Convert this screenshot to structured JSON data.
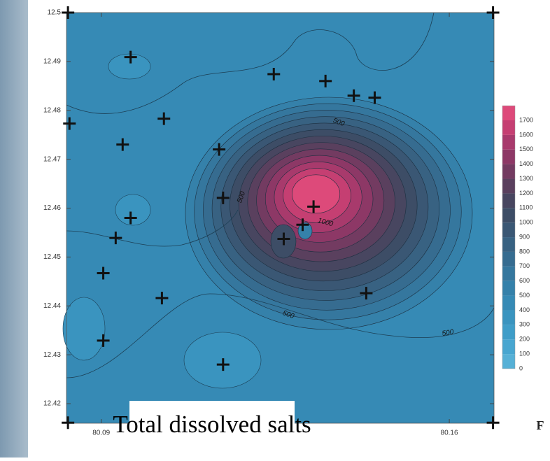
{
  "chart_data": {
    "type": "contour",
    "title": "Total dissolved salts",
    "caption_fragment": "F",
    "xlim": [
      80.083,
      80.169
    ],
    "ylim": [
      12.416,
      12.5
    ],
    "xticks": [
      80.09,
      80.16
    ],
    "yticks": [
      12.42,
      12.43,
      12.44,
      12.45,
      12.46,
      12.47,
      12.48,
      12.49,
      12.5
    ],
    "points": {
      "x": [
        80.0833,
        80.1688,
        80.0959,
        80.1247,
        80.1351,
        80.1408,
        80.145,
        80.0836,
        80.1026,
        80.0943,
        80.1137,
        80.1145,
        80.0959,
        80.1327,
        80.1305,
        80.1267,
        80.0929,
        80.0904,
        80.1022,
        80.1433,
        80.0904,
        80.1145,
        80.0833,
        80.1688
      ],
      "y": [
        12.5,
        12.5,
        12.4909,
        12.4874,
        12.486,
        12.483,
        12.4826,
        12.4773,
        12.4783,
        12.473,
        12.472,
        12.4621,
        12.458,
        12.4603,
        12.4566,
        12.4537,
        12.4539,
        12.4467,
        12.4416,
        12.4426,
        12.4329,
        12.428,
        12.4161,
        12.4161
      ],
      "color": "#111111"
    },
    "colorbar": {
      "ticks": [
        0,
        100,
        200,
        300,
        400,
        500,
        600,
        700,
        800,
        900,
        1000,
        1100,
        1200,
        1300,
        1400,
        1500,
        1600,
        1700
      ],
      "colors": [
        "#56b0d6",
        "#48a6d0",
        "#3f9dc8",
        "#3a94bf",
        "#368ab5",
        "#3581aa",
        "#35779e",
        "#366c90",
        "#386282",
        "#3a5774",
        "#3d4d66",
        "#484660",
        "#5a405e",
        "#733b61",
        "#8d3866",
        "#a83a6c",
        "#c53f72",
        "#dd4a7a"
      ]
    },
    "contour_labels": [
      {
        "text": "500",
        "value": 500
      },
      {
        "text": "500",
        "value": 500
      },
      {
        "text": "500",
        "value": 500
      },
      {
        "text": "500",
        "value": 500
      },
      {
        "text": "1000",
        "value": 1000
      }
    ]
  }
}
